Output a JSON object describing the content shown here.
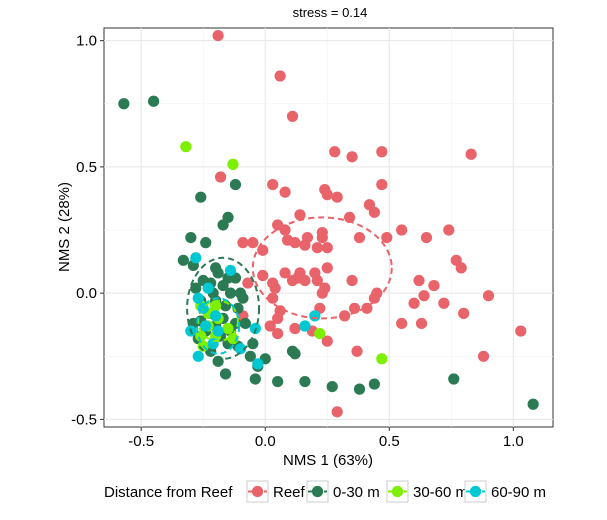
{
  "chart_data": {
    "type": "scatter",
    "title": "stress = 0.14",
    "xlabel": "NMS 1 (63%)",
    "ylabel": "NMS 2 (28%)",
    "xlim": [
      -0.65,
      1.16
    ],
    "ylim": [
      -0.53,
      1.05
    ],
    "x_ticks": [
      -0.5,
      0.0,
      0.5,
      1.0
    ],
    "x_tick_labels": [
      "-0.5",
      "0.0",
      "0.5",
      "1.0"
    ],
    "y_ticks": [
      -0.5,
      0.0,
      0.5,
      1.0
    ],
    "y_tick_labels": [
      "-0.5",
      "0.0",
      "0.5",
      "1.0"
    ],
    "grid": true,
    "legend": {
      "title": "Distance from Reef",
      "position": "bottom",
      "entries": [
        "Reef",
        "0-30 m",
        "30-60 m",
        "60-90 m"
      ]
    },
    "colors": {
      "Reef": "#e8636a",
      "0-30 m": "#2b7a54",
      "30-60 m": "#7cf000",
      "60-90 m": "#00c8d2"
    },
    "series": [
      {
        "name": "Reef",
        "color": "#e8636a",
        "points": [
          [
            -0.19,
            1.02
          ],
          [
            0.06,
            0.86
          ],
          [
            0.11,
            0.7
          ],
          [
            0.28,
            0.56
          ],
          [
            0.47,
            0.56
          ],
          [
            0.83,
            0.55
          ],
          [
            0.35,
            0.54
          ],
          [
            -0.18,
            0.46
          ],
          [
            0.03,
            0.43
          ],
          [
            0.47,
            0.43
          ],
          [
            0.24,
            0.41
          ],
          [
            0.25,
            0.39
          ],
          [
            0.08,
            0.4
          ],
          [
            0.29,
            0.38
          ],
          [
            0.44,
            0.32
          ],
          [
            0.14,
            0.31
          ],
          [
            0.34,
            0.3
          ],
          [
            0.42,
            0.35
          ],
          [
            0.05,
            0.27
          ],
          [
            0.08,
            0.25
          ],
          [
            0.23,
            0.24
          ],
          [
            0.55,
            0.25
          ],
          [
            0.49,
            0.22
          ],
          [
            0.23,
            0.22
          ],
          [
            0.12,
            0.2
          ],
          [
            0.16,
            0.19
          ],
          [
            0.21,
            0.18
          ],
          [
            0.25,
            0.18
          ],
          [
            0.17,
            0.22
          ],
          [
            0.09,
            0.21
          ],
          [
            -0.09,
            0.2
          ],
          [
            -0.05,
            0.2
          ],
          [
            -0.01,
            0.17
          ],
          [
            0.74,
            0.25
          ],
          [
            0.65,
            0.22
          ],
          [
            0.38,
            0.22
          ],
          [
            0.77,
            0.13
          ],
          [
            0.79,
            0.1
          ],
          [
            0.25,
            0.1
          ],
          [
            -0.01,
            0.07
          ],
          [
            0.08,
            0.08
          ],
          [
            0.14,
            0.08
          ],
          [
            0.13,
            0.06
          ],
          [
            0.16,
            0.05
          ],
          [
            0.2,
            0.08
          ],
          [
            0.03,
            0.04
          ],
          [
            -0.07,
            0.04
          ],
          [
            0.04,
            0.02
          ],
          [
            0.11,
            0.05
          ],
          [
            0.21,
            0.05
          ],
          [
            0.35,
            0.05
          ],
          [
            0.24,
            0.02
          ],
          [
            0.23,
            0.0
          ],
          [
            0.45,
            0.0
          ],
          [
            0.62,
            0.05
          ],
          [
            0.68,
            0.03
          ],
          [
            0.64,
            -0.01
          ],
          [
            0.6,
            -0.04
          ],
          [
            0.72,
            -0.04
          ],
          [
            0.9,
            -0.01
          ],
          [
            0.8,
            -0.08
          ],
          [
            0.44,
            -0.02
          ],
          [
            0.41,
            -0.06
          ],
          [
            0.36,
            -0.06
          ],
          [
            0.63,
            -0.12
          ],
          [
            0.55,
            -0.12
          ],
          [
            0.32,
            -0.09
          ],
          [
            0.22,
            -0.06
          ],
          [
            0.03,
            -0.02
          ],
          [
            0.06,
            -0.07
          ],
          [
            0.05,
            -0.1
          ],
          [
            0.12,
            -0.14
          ],
          [
            0.19,
            -0.15
          ],
          [
            0.05,
            -0.16
          ],
          [
            0.25,
            -0.19
          ],
          [
            0.02,
            -0.13
          ],
          [
            -0.09,
            -0.09
          ],
          [
            1.03,
            -0.15
          ],
          [
            0.37,
            -0.23
          ],
          [
            0.88,
            -0.25
          ],
          [
            0.29,
            -0.47
          ]
        ]
      },
      {
        "name": "0-30 m",
        "color": "#2b7a54",
        "points": [
          [
            -0.57,
            0.75
          ],
          [
            -0.45,
            0.76
          ],
          [
            -0.12,
            0.43
          ],
          [
            -0.26,
            0.38
          ],
          [
            -0.17,
            0.27
          ],
          [
            -0.15,
            0.3
          ],
          [
            -0.3,
            0.22
          ],
          [
            -0.24,
            0.2
          ],
          [
            -0.33,
            0.13
          ],
          [
            -0.29,
            0.11
          ],
          [
            -0.2,
            0.1
          ],
          [
            -0.19,
            0.08
          ],
          [
            -0.15,
            0.06
          ],
          [
            -0.25,
            0.05
          ],
          [
            -0.12,
            0.06
          ],
          [
            -0.22,
            0.04
          ],
          [
            -0.17,
            0.03
          ],
          [
            -0.28,
            0.02
          ],
          [
            -0.21,
            0.0
          ],
          [
            -0.14,
            0.0
          ],
          [
            -0.1,
            0.0
          ],
          [
            -0.09,
            -0.02
          ],
          [
            -0.26,
            -0.03
          ],
          [
            -0.2,
            -0.03
          ],
          [
            -0.16,
            -0.05
          ],
          [
            -0.11,
            -0.06
          ],
          [
            -0.22,
            -0.08
          ],
          [
            -0.17,
            -0.1
          ],
          [
            -0.26,
            -0.11
          ],
          [
            -0.12,
            -0.12
          ],
          [
            -0.2,
            -0.13
          ],
          [
            -0.08,
            -0.12
          ],
          [
            -0.14,
            -0.15
          ],
          [
            -0.24,
            -0.15
          ],
          [
            -0.29,
            -0.12
          ],
          [
            -0.18,
            -0.17
          ],
          [
            -0.27,
            -0.18
          ],
          [
            -0.15,
            -0.2
          ],
          [
            -0.11,
            -0.21
          ],
          [
            -0.05,
            -0.2
          ],
          [
            -0.22,
            -0.23
          ],
          [
            -0.06,
            -0.25
          ],
          [
            0.0,
            -0.26
          ],
          [
            -0.03,
            -0.29
          ],
          [
            -0.19,
            -0.27
          ],
          [
            0.11,
            -0.23
          ],
          [
            0.12,
            -0.24
          ],
          [
            -0.16,
            -0.32
          ],
          [
            -0.04,
            -0.34
          ],
          [
            0.05,
            -0.35
          ],
          [
            0.16,
            -0.35
          ],
          [
            0.27,
            -0.37
          ],
          [
            0.38,
            -0.38
          ],
          [
            0.44,
            -0.36
          ],
          [
            0.76,
            -0.34
          ],
          [
            1.08,
            -0.44
          ]
        ]
      },
      {
        "name": "30-60 m",
        "color": "#7cf000",
        "points": [
          [
            -0.32,
            0.58
          ],
          [
            -0.13,
            0.51
          ],
          [
            -0.2,
            -0.05
          ],
          [
            -0.23,
            -0.08
          ],
          [
            -0.26,
            -0.05
          ],
          [
            -0.19,
            -0.1
          ],
          [
            -0.15,
            -0.14
          ],
          [
            -0.23,
            -0.13
          ],
          [
            -0.26,
            -0.17
          ],
          [
            -0.2,
            -0.17
          ],
          [
            -0.13,
            -0.18
          ],
          [
            -0.25,
            -0.21
          ],
          [
            0.22,
            -0.16
          ],
          [
            0.47,
            -0.26
          ]
        ]
      },
      {
        "name": "60-90 m",
        "color": "#00c8d2",
        "points": [
          [
            -0.28,
            0.14
          ],
          [
            -0.14,
            0.09
          ],
          [
            -0.23,
            0.02
          ],
          [
            -0.27,
            -0.02
          ],
          [
            -0.25,
            -0.06
          ],
          [
            -0.2,
            -0.09
          ],
          [
            -0.3,
            -0.15
          ],
          [
            -0.24,
            -0.13
          ],
          [
            -0.19,
            -0.15
          ],
          [
            -0.27,
            -0.25
          ],
          [
            -0.21,
            -0.2
          ],
          [
            -0.1,
            -0.22
          ],
          [
            -0.03,
            -0.28
          ],
          [
            0.2,
            -0.09
          ],
          [
            0.16,
            -0.13
          ],
          [
            -0.04,
            -0.14
          ]
        ]
      }
    ],
    "ellipses": [
      {
        "series": "Reef",
        "color": "#e8636a",
        "center": [
          0.23,
          0.1
        ],
        "radii": [
          0.56,
          0.4
        ]
      },
      {
        "series": "0-30 m",
        "color": "#2b7a54",
        "center": [
          -0.17,
          -0.06
        ],
        "radii": [
          0.29,
          0.4
        ]
      },
      {
        "series": "30-60 m",
        "color": "#7cf000",
        "center": [
          -0.19,
          -0.11
        ],
        "radii": [
          0.16,
          0.16
        ]
      },
      {
        "series": "60-90 m",
        "color": "#00c8d2",
        "center": [
          -0.19,
          -0.13
        ],
        "radii": [
          0.17,
          0.22
        ]
      }
    ]
  }
}
